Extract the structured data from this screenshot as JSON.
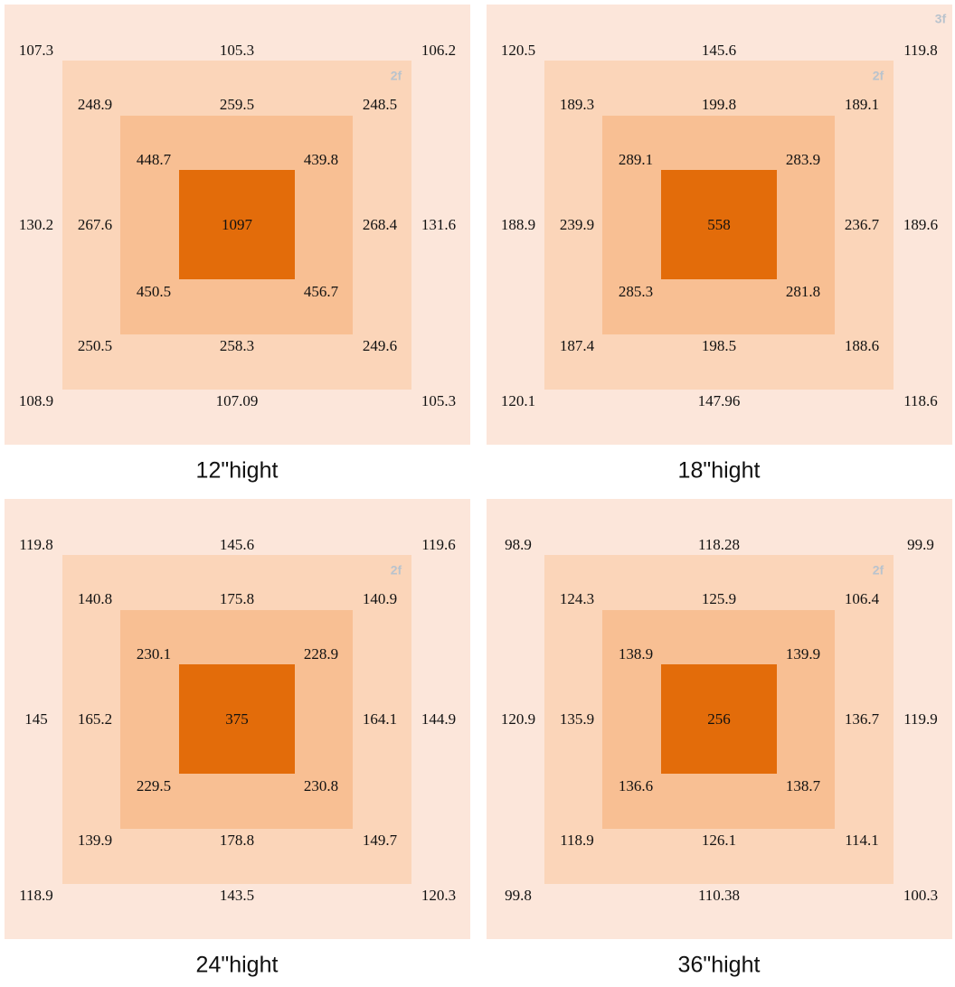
{
  "panels": [
    {
      "caption": "12\"hight",
      "floor_labels": [
        "2f"
      ],
      "outer": [
        107.3,
        105.3,
        106.2,
        130.2,
        131.6,
        108.9,
        107.09,
        105.3
      ],
      "middle": [
        248.9,
        259.5,
        248.5,
        267.6,
        268.4,
        250.5,
        258.3,
        249.6
      ],
      "inner": [
        448.7,
        439.8,
        450.5,
        456.7
      ],
      "center": 1097
    },
    {
      "caption": "18\"hight",
      "floor_labels": [
        "2f",
        "3f"
      ],
      "outer": [
        120.5,
        145.6,
        119.8,
        188.9,
        189.6,
        120.1,
        147.96,
        118.6
      ],
      "middle": [
        189.3,
        199.8,
        189.1,
        239.9,
        236.7,
        187.4,
        198.5,
        188.6
      ],
      "inner": [
        289.1,
        283.9,
        285.3,
        281.8
      ],
      "center": 558
    },
    {
      "caption": "24\"hight",
      "floor_labels": [
        "2f"
      ],
      "outer": [
        119.8,
        145.6,
        119.6,
        145,
        144.9,
        118.9,
        143.5,
        120.3
      ],
      "middle": [
        140.8,
        175.8,
        140.9,
        165.2,
        164.1,
        139.9,
        178.8,
        149.7
      ],
      "inner": [
        230.1,
        228.9,
        229.5,
        230.8
      ],
      "center": 375
    },
    {
      "caption": "36\"hight",
      "floor_labels": [
        "2f"
      ],
      "outer": [
        98.9,
        118.28,
        99.9,
        120.9,
        119.9,
        99.8,
        110.38,
        100.3
      ],
      "middle": [
        124.3,
        125.9,
        106.4,
        135.9,
        136.7,
        118.9,
        126.1,
        114.1
      ],
      "inner": [
        138.9,
        139.9,
        136.6,
        138.7
      ],
      "center": 256
    }
  ]
}
